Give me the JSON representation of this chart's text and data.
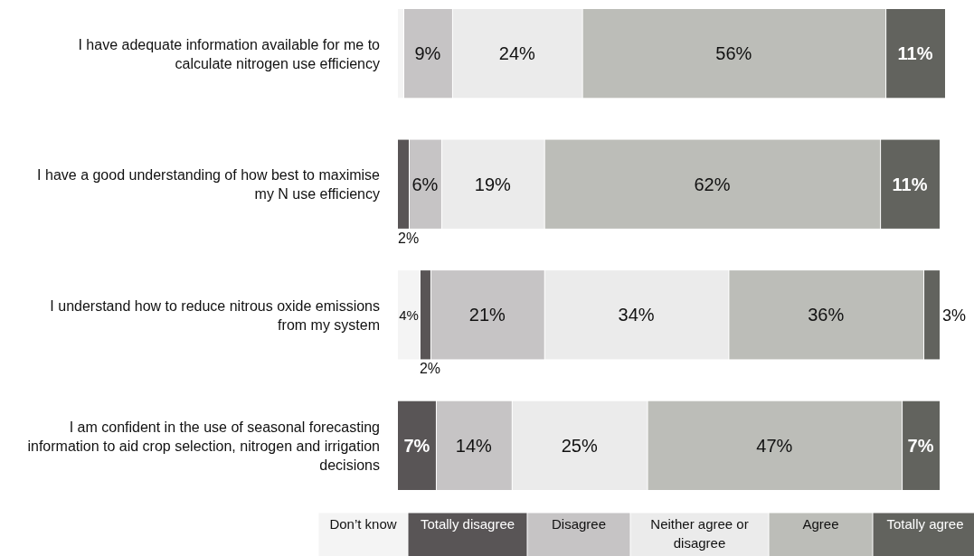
{
  "chart_data": {
    "type": "bar",
    "orientation": "horizontal",
    "stacked": true,
    "legend": "bottom",
    "categories": [
      "I have adequate information available for me to calculate nitrogen use efficiency",
      "I have a good understanding of how best to maximise my N use efficiency",
      "I understand how to reduce nitrous oxide emissions from my system",
      "I am confident in the use of seasonal forecasting information to aid crop selection, nitrogen and irrigation decisions"
    ],
    "series": [
      {
        "name": "Don’t know",
        "color": "#f4f4f4",
        "values": [
          1,
          0,
          4,
          0
        ],
        "value_labels": [
          null,
          null,
          "4%",
          null
        ]
      },
      {
        "name": "Totally disagree",
        "color": "#595556",
        "values": [
          0,
          2,
          2,
          7
        ],
        "value_labels": [
          null,
          "2%",
          "2%",
          "7%"
        ]
      },
      {
        "name": "Disagree",
        "color": "#c6c4c5",
        "values": [
          9,
          6,
          21,
          14
        ],
        "value_labels": [
          "9%",
          "6%",
          "21%",
          "14%"
        ]
      },
      {
        "name": "Neither agree or disagree",
        "color": "#ebebeb",
        "values": [
          24,
          19,
          34,
          25
        ],
        "value_labels": [
          "24%",
          "19%",
          "34%",
          "25%"
        ]
      },
      {
        "name": "Agree",
        "color": "#bcbdb8",
        "values": [
          56,
          62,
          36,
          47
        ],
        "value_labels": [
          "56%",
          "62%",
          "36%",
          "47%"
        ]
      },
      {
        "name": "Totally agree",
        "color": "#62635e",
        "values": [
          11,
          11,
          3,
          7
        ],
        "value_labels": [
          "11%",
          "11%",
          "3%",
          "7%"
        ]
      }
    ]
  }
}
